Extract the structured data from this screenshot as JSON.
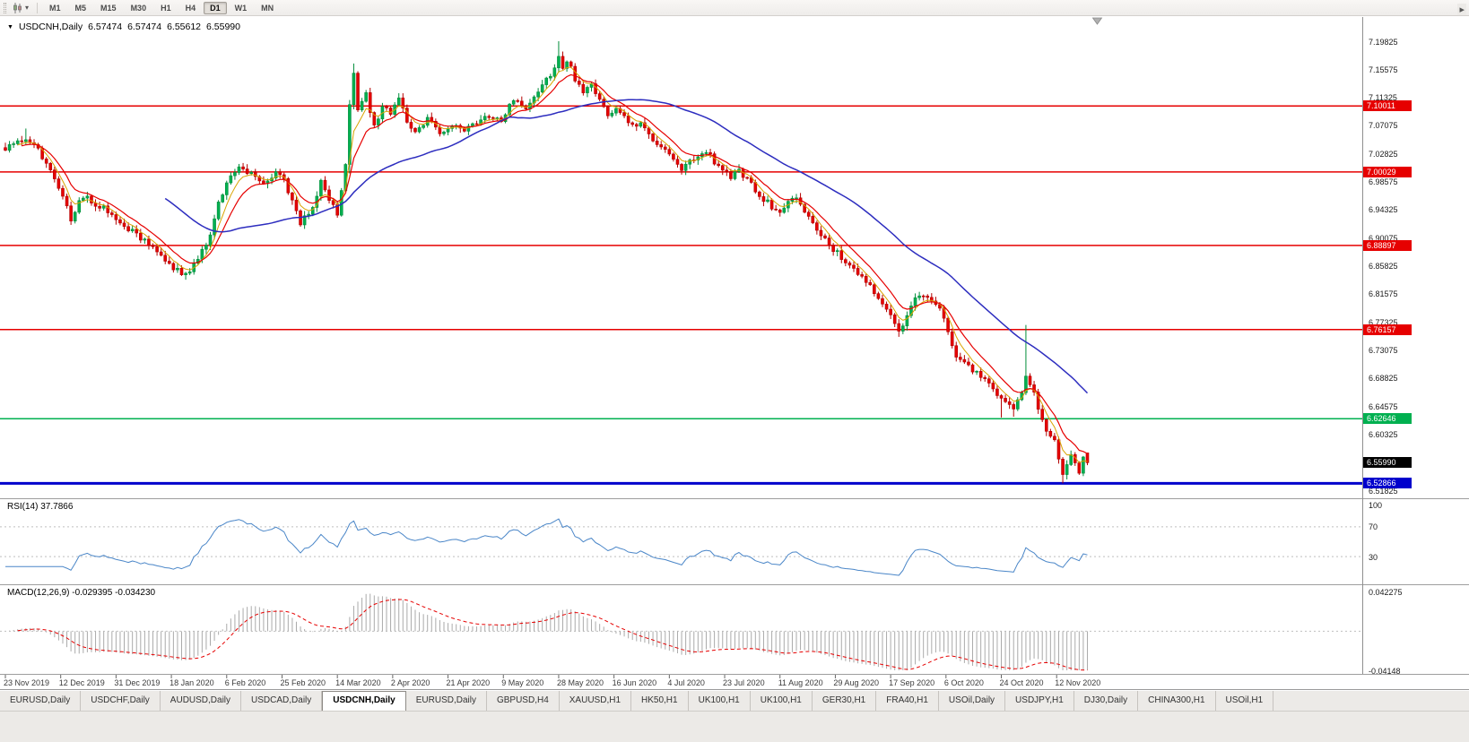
{
  "icons": {
    "collapse": "▼",
    "dropdown_caret": "▾",
    "tab_scroll_right": "▸"
  },
  "toolbar": {
    "timeframes": [
      "M1",
      "M5",
      "M15",
      "M30",
      "H1",
      "H4",
      "D1",
      "W1",
      "MN"
    ],
    "active_timeframe": "D1"
  },
  "window": {
    "title_symbol": "USDCNH,Daily",
    "ohlc": {
      "open": "6.57474",
      "high": "6.57474",
      "low": "6.55612",
      "close": "6.55990"
    }
  },
  "chart_data": {
    "type": "candlestick",
    "symbol": "USDCNH",
    "timeframe": "Daily",
    "bars": 265,
    "x_axis": {
      "labels": [
        "23 Nov 2019",
        "12 Dec 2019",
        "31 Dec 2019",
        "18 Jan 2020",
        "6 Feb 2020",
        "25 Feb 2020",
        "14 Mar 2020",
        "2 Apr 2020",
        "21 Apr 2020",
        "9 May 2020",
        "28 May 2020",
        "16 Jun 2020",
        "4 Jul 2020",
        "23 Jul 2020",
        "11 Aug 2020",
        "29 Aug 2020",
        "17 Sep 2020",
        "6 Oct 2020",
        "24 Oct 2020",
        "12 Nov 2020"
      ],
      "bars_per_label": 13.5
    },
    "y_axis": {
      "max": 7.19825,
      "min": 6.51825,
      "step": 0.0425,
      "labels": [
        "7.19825",
        "7.15575",
        "7.11325",
        "7.07075",
        "7.02825",
        "6.98575",
        "6.94325",
        "6.90075",
        "6.85825",
        "6.81575",
        "6.77325",
        "6.73075",
        "6.68825",
        "6.64575",
        "6.60325",
        "6.56075",
        "6.51825"
      ]
    },
    "close_anchors": [
      [
        0,
        7.034
      ],
      [
        3,
        7.044
      ],
      [
        5,
        7.052
      ],
      [
        8,
        7.034
      ],
      [
        11,
        7.004
      ],
      [
        14,
        6.962
      ],
      [
        16,
        6.928
      ],
      [
        19,
        6.965
      ],
      [
        22,
        6.952
      ],
      [
        26,
        6.938
      ],
      [
        29,
        6.92
      ],
      [
        33,
        6.9
      ],
      [
        37,
        6.878
      ],
      [
        41,
        6.856
      ],
      [
        44,
        6.844
      ],
      [
        47,
        6.865
      ],
      [
        50,
        6.908
      ],
      [
        52,
        6.952
      ],
      [
        54,
        6.986
      ],
      [
        57,
        7.012
      ],
      [
        60,
        6.996
      ],
      [
        63,
        6.98
      ],
      [
        66,
        6.996
      ],
      [
        68,
        6.988
      ],
      [
        70,
        6.958
      ],
      [
        72,
        6.922
      ],
      [
        75,
        6.95
      ],
      [
        77,
        6.986
      ],
      [
        79,
        6.958
      ],
      [
        81,
        6.936
      ],
      [
        83,
        7.015
      ],
      [
        84,
        7.1
      ],
      [
        85,
        7.148
      ],
      [
        86,
        7.095
      ],
      [
        88,
        7.118
      ],
      [
        90,
        7.068
      ],
      [
        92,
        7.102
      ],
      [
        94,
        7.088
      ],
      [
        96,
        7.112
      ],
      [
        98,
        7.078
      ],
      [
        100,
        7.06
      ],
      [
        103,
        7.08
      ],
      [
        106,
        7.058
      ],
      [
        109,
        7.072
      ],
      [
        112,
        7.06
      ],
      [
        115,
        7.076
      ],
      [
        118,
        7.086
      ],
      [
        121,
        7.078
      ],
      [
        124,
        7.11
      ],
      [
        127,
        7.096
      ],
      [
        130,
        7.12
      ],
      [
        133,
        7.148
      ],
      [
        135,
        7.176
      ],
      [
        136,
        7.158
      ],
      [
        137,
        7.17
      ],
      [
        139,
        7.142
      ],
      [
        141,
        7.12
      ],
      [
        143,
        7.136
      ],
      [
        145,
        7.11
      ],
      [
        147,
        7.088
      ],
      [
        149,
        7.098
      ],
      [
        151,
        7.082
      ],
      [
        153,
        7.068
      ],
      [
        155,
        7.075
      ],
      [
        157,
        7.058
      ],
      [
        159,
        7.044
      ],
      [
        161,
        7.03
      ],
      [
        163,
        7.016
      ],
      [
        165,
        7.004
      ],
      [
        167,
        7.014
      ],
      [
        169,
        7.024
      ],
      [
        171,
        7.032
      ],
      [
        173,
        7.016
      ],
      [
        175,
        7.004
      ],
      [
        177,
        6.992
      ],
      [
        179,
        7.004
      ],
      [
        181,
        6.988
      ],
      [
        183,
        6.974
      ],
      [
        185,
        6.96
      ],
      [
        187,
        6.948
      ],
      [
        189,
        6.94
      ],
      [
        191,
        6.952
      ],
      [
        193,
        6.96
      ],
      [
        195,
        6.94
      ],
      [
        197,
        6.924
      ],
      [
        199,
        6.906
      ],
      [
        201,
        6.89
      ],
      [
        203,
        6.878
      ],
      [
        205,
        6.862
      ],
      [
        207,
        6.85
      ],
      [
        209,
        6.84
      ],
      [
        211,
        6.828
      ],
      [
        213,
        6.812
      ],
      [
        215,
        6.792
      ],
      [
        217,
        6.772
      ],
      [
        218,
        6.758
      ],
      [
        220,
        6.784
      ],
      [
        222,
        6.806
      ],
      [
        224,
        6.814
      ],
      [
        226,
        6.804
      ],
      [
        228,
        6.794
      ],
      [
        230,
        6.756
      ],
      [
        232,
        6.722
      ],
      [
        234,
        6.71
      ],
      [
        236,
        6.7
      ],
      [
        238,
        6.69
      ],
      [
        240,
        6.678
      ],
      [
        242,
        6.664
      ],
      [
        244,
        6.652
      ],
      [
        246,
        6.644
      ],
      [
        248,
        6.668
      ],
      [
        249,
        6.695
      ],
      [
        250,
        6.68
      ],
      [
        251,
        6.664
      ],
      [
        252,
        6.644
      ],
      [
        253,
        6.624
      ],
      [
        254,
        6.61
      ],
      [
        255,
        6.6
      ],
      [
        256,
        6.594
      ],
      [
        257,
        6.568
      ],
      [
        258,
        6.546
      ],
      [
        259,
        6.556
      ],
      [
        260,
        6.574
      ],
      [
        261,
        6.56
      ],
      [
        262,
        6.548
      ],
      [
        263,
        6.566
      ],
      [
        264,
        6.5599
      ]
    ],
    "extremes": [
      {
        "bar": 5,
        "high": 7.066
      },
      {
        "bar": 44,
        "low": 6.837
      },
      {
        "bar": 84,
        "low": 6.998
      },
      {
        "bar": 85,
        "high": 7.1645
      },
      {
        "bar": 135,
        "high": 7.19825
      },
      {
        "bar": 218,
        "low": 6.7505
      },
      {
        "bar": 243,
        "low": 6.6284
      },
      {
        "bar": 246,
        "low": 6.6295
      },
      {
        "bar": 249,
        "high": 6.7685
      },
      {
        "bar": 258,
        "low": 6.52866
      }
    ],
    "last_candle": {
      "open": 6.57474,
      "high": 6.57474,
      "low": 6.55612,
      "close": 6.5599
    },
    "hlines": [
      {
        "value": 7.10011,
        "label": "7.10011",
        "color": "#e60000",
        "thickness": 1.5
      },
      {
        "value": 7.00029,
        "label": "7.00029",
        "color": "#e60000",
        "thickness": 1.5
      },
      {
        "value": 6.88897,
        "label": "6.88897",
        "color": "#e60000",
        "thickness": 1.5
      },
      {
        "value": 6.76157,
        "label": "6.76157",
        "color": "#e60000",
        "thickness": 1.5
      },
      {
        "value": 6.62646,
        "label": "6.62646",
        "color": "#00b050",
        "thickness": 1.5
      },
      {
        "value": 6.52866,
        "label": "6.52866",
        "color": "#0000cc",
        "thickness": 3
      }
    ],
    "current_price": {
      "value": 6.5599,
      "label": "6.55990",
      "badge_bg": "#000000"
    },
    "colors": {
      "up": "#00b050",
      "up_stroke": "#008c3a",
      "down": "#e60000",
      "down_stroke": "#b30000",
      "ma_fast": "#d9a300",
      "ma_mid": "#e60000",
      "ma_slow": "#2d2dbf"
    },
    "ma_periods": {
      "fast": 5,
      "mid": 10,
      "slow": 40
    }
  },
  "rsi_panel": {
    "label": "RSI(14) 37.7866",
    "period": 14,
    "line_color": "#4a86c8",
    "levels": [
      {
        "value": 100,
        "label": "100",
        "dotted": false
      },
      {
        "value": 70,
        "label": "70",
        "dotted": true
      },
      {
        "value": 30,
        "label": "30",
        "dotted": true
      }
    ]
  },
  "macd_panel": {
    "label": "MACD(12,26,9) -0.029395 -0.034230",
    "fast": 12,
    "slow": 26,
    "signal": 9,
    "hist_color": "#aaaaaa",
    "signal_color": "#e60000",
    "y_max": {
      "value": 0.042275,
      "label": "0.042275"
    },
    "y_min": {
      "value": -0.04148,
      "label": "-0.04148"
    }
  },
  "tabs": {
    "items": [
      "EURUSD,Daily",
      "USDCHF,Daily",
      "AUDUSD,Daily",
      "USDCAD,Daily",
      "USDCNH,Daily",
      "EURUSD,Daily",
      "GBPUSD,H4",
      "XAUUSD,H1",
      "HK50,H1",
      "UK100,H1",
      "UK100,H1",
      "GER30,H1",
      "FRA40,H1",
      "USOil,Daily",
      "USDJPY,H1",
      "DJ30,Daily",
      "CHINA300,H1",
      "USOil,H1"
    ],
    "active_index": 4
  }
}
